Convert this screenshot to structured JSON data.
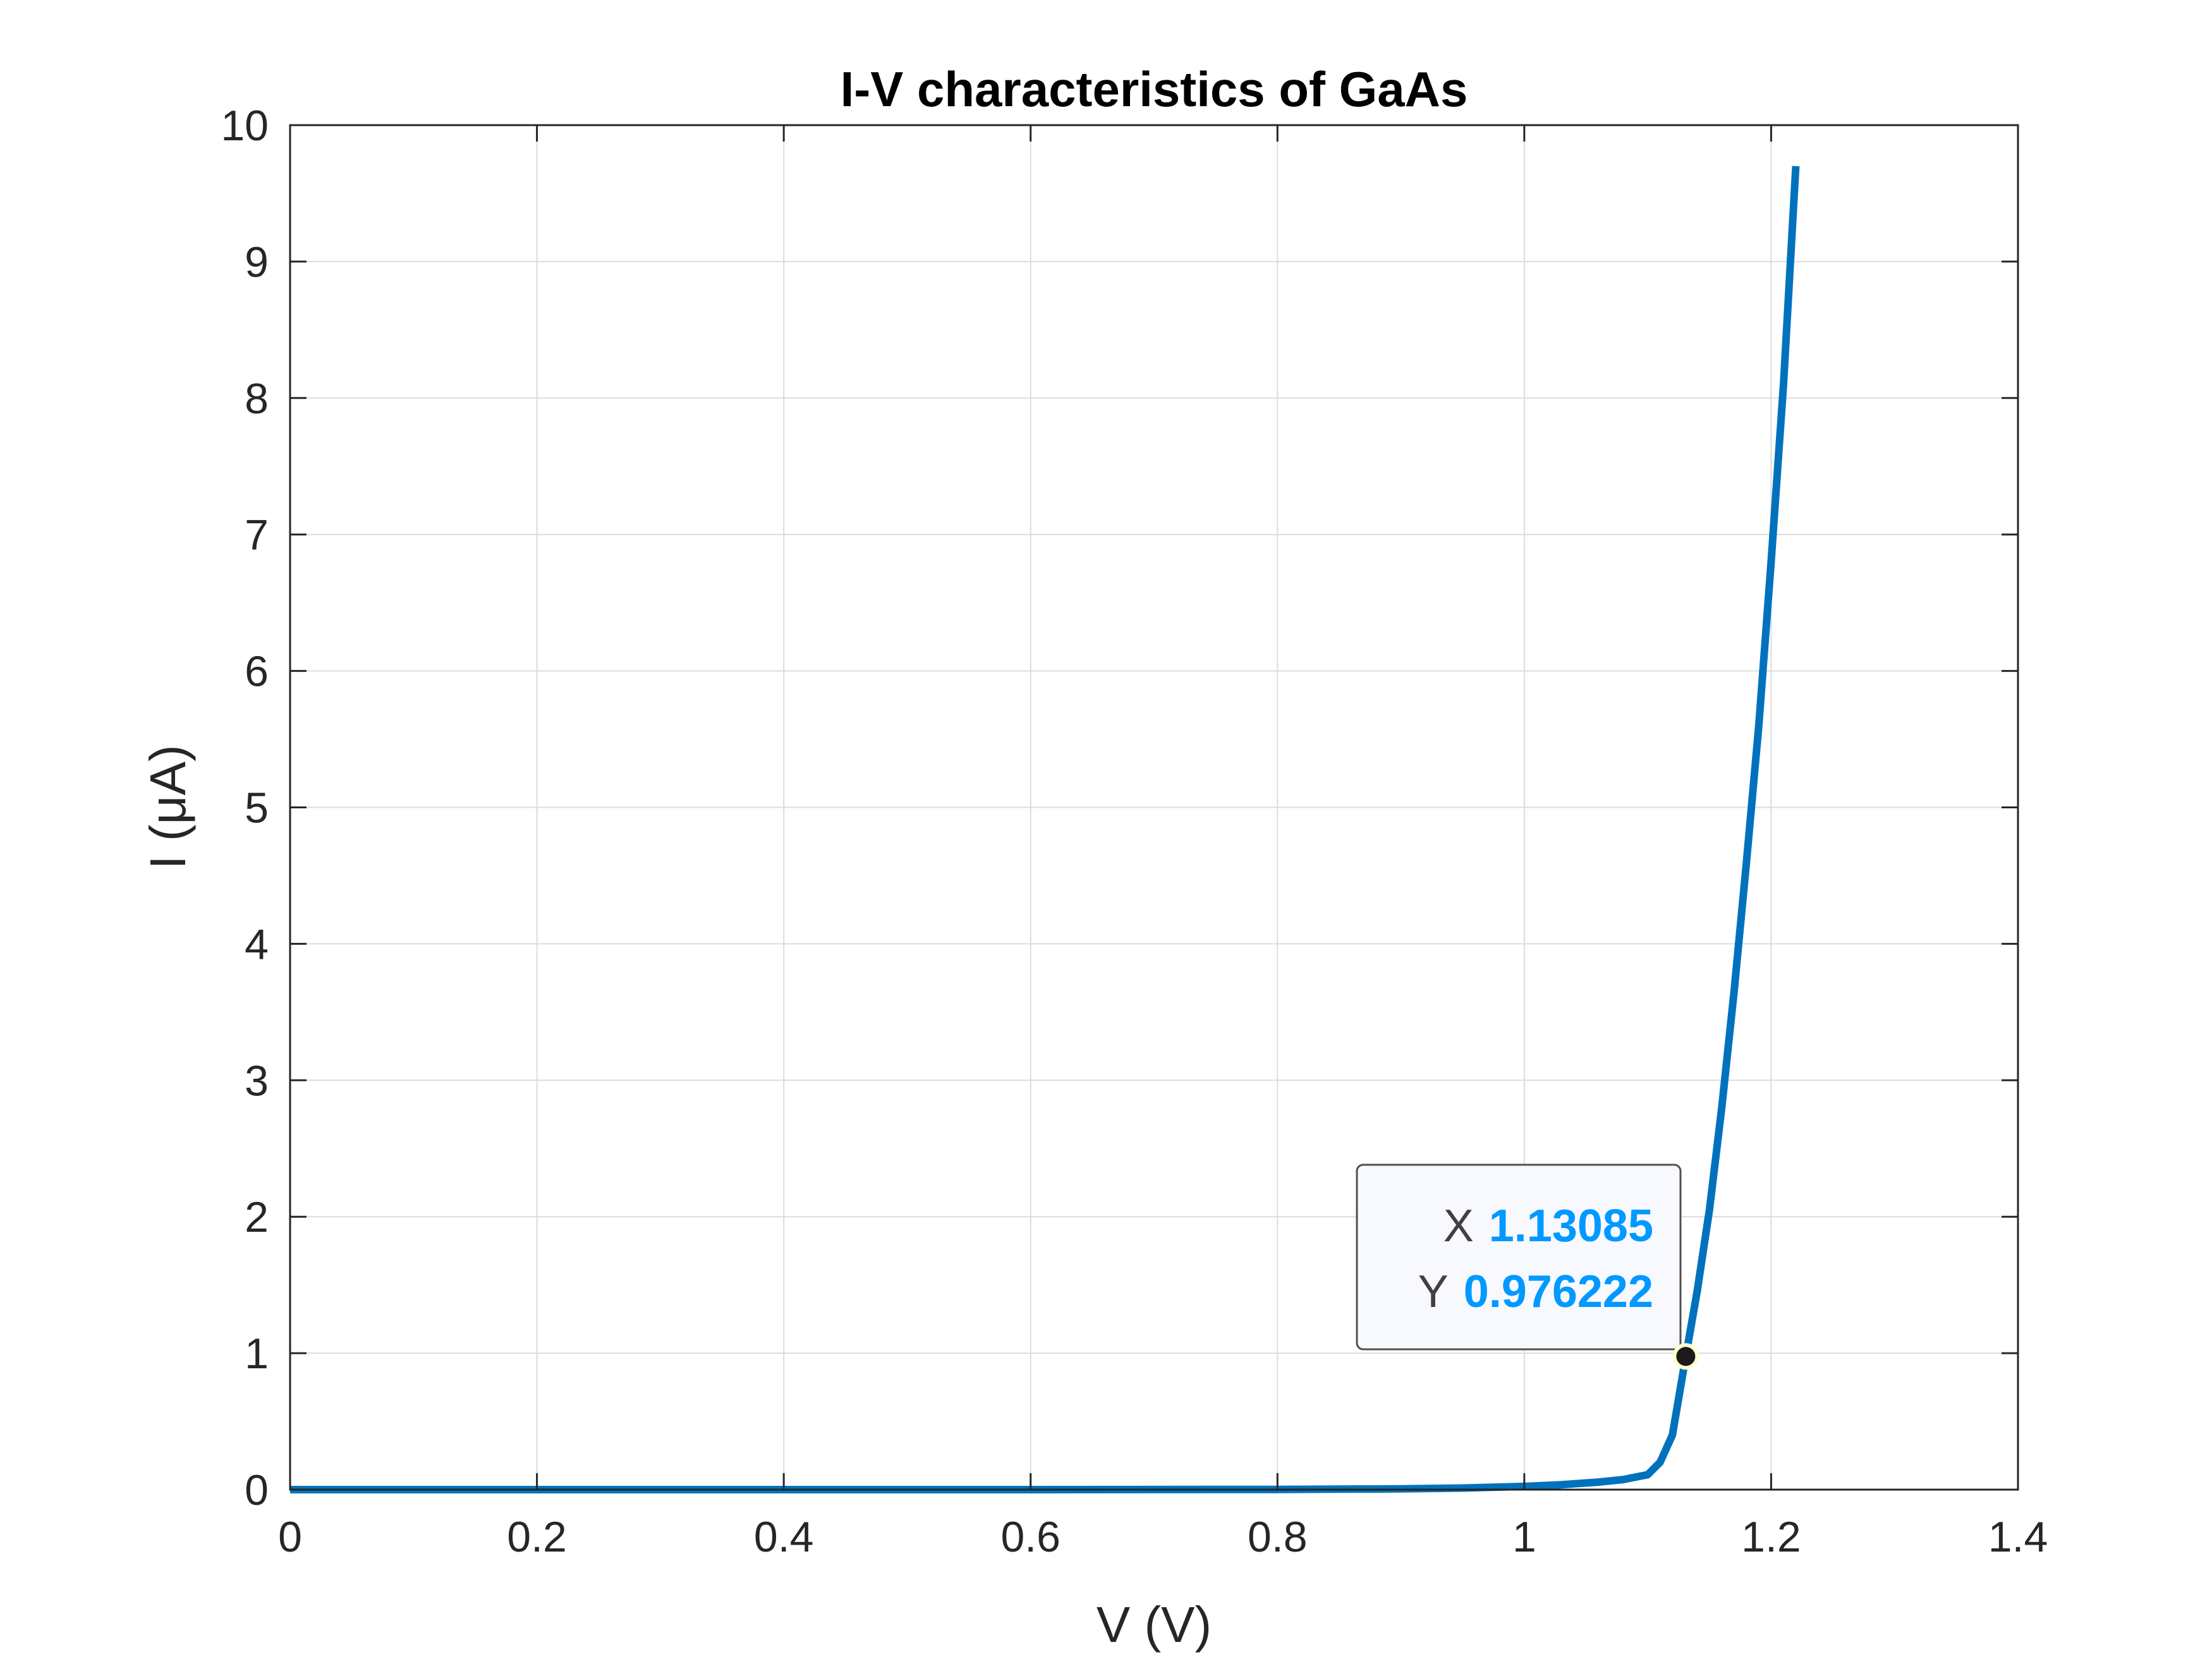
{
  "chart_data": {
    "type": "line",
    "title": "I-V characteristics of GaAs",
    "xlabel": "V (V)",
    "ylabel": "I (μA)",
    "xlim": [
      0,
      1.4
    ],
    "ylim": [
      0,
      10
    ],
    "xticks": [
      0,
      0.2,
      0.4,
      0.6,
      0.8,
      1.0,
      1.2,
      1.4
    ],
    "xtick_labels": [
      "0",
      "0.2",
      "0.4",
      "0.6",
      "0.8",
      "1",
      "1.2",
      "1.4"
    ],
    "yticks": [
      0,
      1,
      2,
      3,
      4,
      5,
      6,
      7,
      8,
      9,
      10
    ],
    "ytick_labels": [
      "0",
      "1",
      "2",
      "3",
      "4",
      "5",
      "6",
      "7",
      "8",
      "9",
      "10"
    ],
    "grid": true,
    "series": [
      {
        "color": "#0072bd",
        "x": [
          0,
          0.2,
          0.4,
          0.6,
          0.8,
          0.9,
          0.95,
          1.0,
          1.03,
          1.06,
          1.08,
          1.1,
          1.11,
          1.12,
          1.13085,
          1.14,
          1.15,
          1.16,
          1.17,
          1.18,
          1.19,
          1.2,
          1.21,
          1.22
        ],
        "y": [
          0,
          0,
          0,
          0.0001,
          0.0014,
          0.0057,
          0.0116,
          0.0236,
          0.0361,
          0.0553,
          0.0736,
          0.1094,
          0.2,
          0.4,
          0.976222,
          1.45,
          2.05,
          2.8,
          3.65,
          4.6,
          5.6,
          6.8,
          8.1,
          9.7
        ]
      }
    ],
    "datatip": {
      "x_key": "X",
      "x_value": "1.13085",
      "y_key": "Y",
      "y_value": "0.976222",
      "point": [
        1.13085,
        0.976222
      ]
    }
  }
}
